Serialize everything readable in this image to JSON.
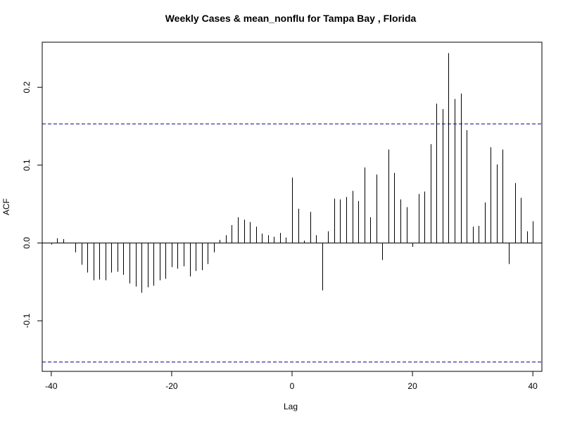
{
  "chart_data": {
    "type": "bar",
    "title": "Weekly Cases & mean_nonflu for Tampa Bay , Florida",
    "xlabel": "Lag",
    "ylabel": "ACF",
    "xlim": [
      -41.5,
      41.5
    ],
    "ylim": [
      -0.165,
      0.258
    ],
    "x_ticks": [
      -40,
      -20,
      0,
      20,
      40
    ],
    "x_tick_labels": [
      "-40",
      "-20",
      "0",
      "20",
      "40"
    ],
    "y_ticks": [
      -0.1,
      0.0,
      0.1,
      0.2
    ],
    "y_tick_labels": [
      "-0.1",
      "0.0",
      "0.1",
      "0.2"
    ],
    "confidence_bound": 0.153,
    "grid": false,
    "legend": "none",
    "colors": {
      "bars": "#000000",
      "confidence": "#00008b",
      "zero_line": "#000000",
      "frame": "#000000"
    },
    "x": [
      -40,
      -39,
      -38,
      -37,
      -36,
      -35,
      -34,
      -33,
      -32,
      -31,
      -30,
      -29,
      -28,
      -27,
      -26,
      -25,
      -24,
      -23,
      -22,
      -21,
      -20,
      -19,
      -18,
      -17,
      -16,
      -15,
      -14,
      -13,
      -12,
      -11,
      -10,
      -9,
      -8,
      -7,
      -6,
      -5,
      -4,
      -3,
      -2,
      -1,
      0,
      1,
      2,
      3,
      4,
      5,
      6,
      7,
      8,
      9,
      10,
      11,
      12,
      13,
      14,
      15,
      16,
      17,
      18,
      19,
      20,
      21,
      22,
      23,
      24,
      25,
      26,
      27,
      28,
      29,
      30,
      31,
      32,
      33,
      34,
      35,
      36,
      37,
      38,
      39,
      40
    ],
    "values": [
      -0.002,
      0.006,
      0.005,
      0.0,
      -0.012,
      -0.028,
      -0.038,
      -0.048,
      -0.047,
      -0.048,
      -0.038,
      -0.037,
      -0.041,
      -0.052,
      -0.056,
      -0.064,
      -0.057,
      -0.055,
      -0.048,
      -0.046,
      -0.031,
      -0.033,
      -0.03,
      -0.043,
      -0.036,
      -0.035,
      -0.027,
      -0.012,
      0.004,
      0.01,
      0.023,
      0.033,
      0.03,
      0.027,
      0.021,
      0.012,
      0.01,
      0.008,
      0.013,
      0.007,
      0.084,
      0.044,
      0.003,
      0.04,
      0.01,
      -0.061,
      0.015,
      0.057,
      0.056,
      0.059,
      0.067,
      0.054,
      0.097,
      0.033,
      0.088,
      -0.022,
      0.12,
      0.09,
      0.056,
      0.046,
      -0.005,
      0.063,
      0.066,
      0.127,
      0.179,
      0.172,
      0.244,
      0.185,
      0.192,
      0.145,
      0.021,
      0.022,
      0.052,
      0.123,
      0.101,
      0.12,
      -0.027,
      0.077,
      0.058,
      0.015,
      0.028
    ]
  }
}
